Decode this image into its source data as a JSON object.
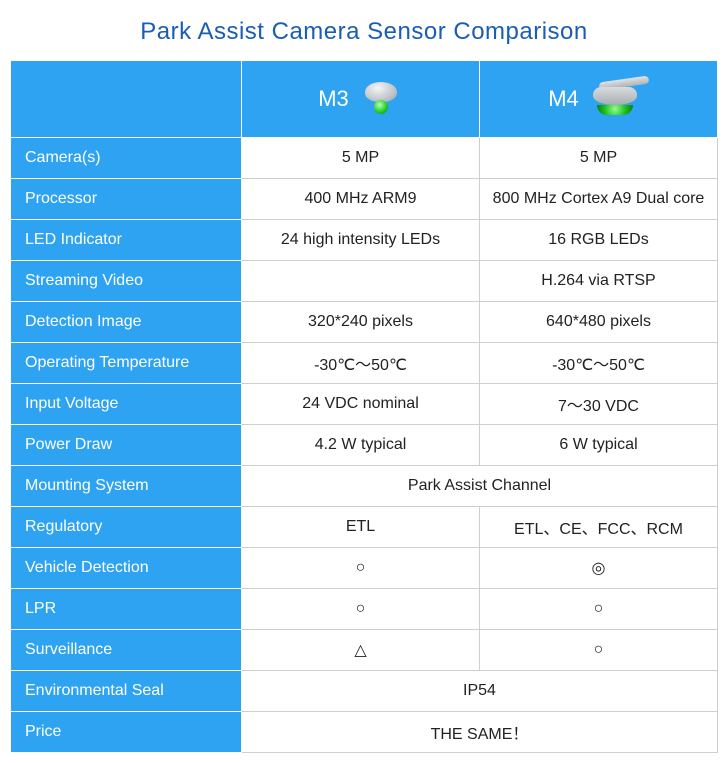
{
  "title": "Park Assist Camera Sensor Comparison",
  "header": {
    "c1": "M3",
    "c2": "M4"
  },
  "rows": {
    "camera": {
      "label": "Camera(s)",
      "m3": "5 MP",
      "m4": "5 MP"
    },
    "processor": {
      "label": "Processor",
      "m3": "400 MHz ARM9",
      "m4": "800 MHz Cortex A9 Dual core"
    },
    "led": {
      "label": "LED Indicator",
      "m3": "24 high intensity LEDs",
      "m4": "16 RGB LEDs"
    },
    "streaming": {
      "label": "Streaming Video",
      "m3": "",
      "m4": "H.264 via RTSP"
    },
    "detection": {
      "label": "Detection Image",
      "m3": "320*240 pixels",
      "m4": "640*480 pixels"
    },
    "optemp": {
      "label": "Operating Temperature",
      "m3": "-30℃～50℃",
      "m4": "-30℃～50℃"
    },
    "voltage": {
      "label": "Input Voltage",
      "m3": "24 VDC nominal",
      "m4": "7～30 VDC"
    },
    "power": {
      "label": "Power Draw",
      "m3": "4.2 W typical",
      "m4": "6 W typical"
    },
    "mounting": {
      "label": "Mounting System",
      "merged": "Park Assist Channel"
    },
    "regulatory": {
      "label": "Regulatory",
      "m3": "ETL",
      "m4": "ETL、CE、FCC、RCM"
    },
    "vdetect": {
      "label": "Vehicle Detection",
      "m3": "○",
      "m4": "◎"
    },
    "lpr": {
      "label": "LPR",
      "m3": "○",
      "m4": "○"
    },
    "surveil": {
      "label": "Surveillance",
      "m3": "△",
      "m4": "○"
    },
    "envseal": {
      "label": "Environmental Seal",
      "merged": "IP54"
    },
    "price": {
      "label": "Price",
      "merged": "THE SAME！"
    }
  },
  "colors": {
    "title": "#1a5db4",
    "header_bg": "#2ea3f2",
    "header_text": "#ffffff",
    "cell_border": "#cfcfcf",
    "cell_text": "#222222"
  },
  "fonts": {
    "title_size_pt": 18,
    "header_size_pt": 16,
    "body_size_pt": 12
  }
}
